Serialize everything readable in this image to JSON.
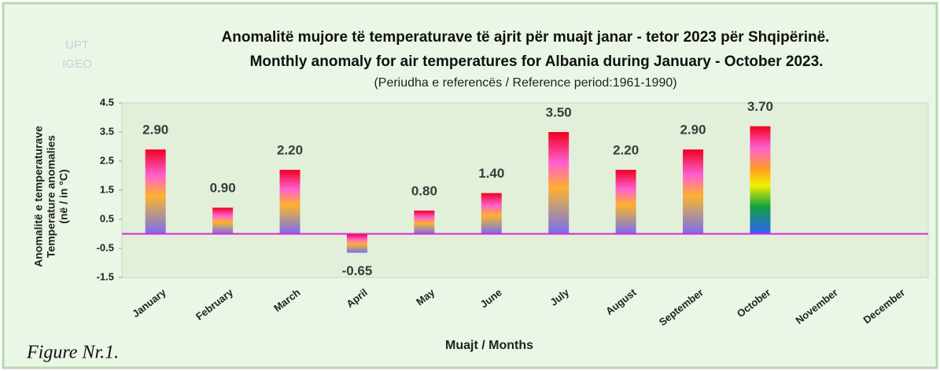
{
  "watermark": [
    "UPT",
    "IGEO"
  ],
  "figure_label": "Figure Nr.1.",
  "chart_data": {
    "type": "bar",
    "title": [
      "Anomalitë mujore të temperaturave të ajrit për muajt janar - tetor 2023 për Shqipërinë.",
      "Monthly anomaly for air temperatures for Albania during January - October 2023."
    ],
    "subtitle": "(Periudha e referencës / Reference period:1961-1990)",
    "ylabel": [
      "Anomalitë e temperaturave",
      "Temperature anomalies",
      "(në / in °C)"
    ],
    "xlabel": "Muajt / Months",
    "categories": [
      "January",
      "February",
      "March",
      "April",
      "May",
      "June",
      "July",
      "August",
      "September",
      "October",
      "November",
      "December"
    ],
    "values": [
      2.9,
      0.9,
      2.2,
      -0.65,
      0.8,
      1.4,
      3.5,
      2.2,
      2.9,
      3.7,
      null,
      null
    ],
    "value_labels": [
      "2.90",
      "0.90",
      "2.20",
      "-0.65",
      "0.80",
      "1.40",
      "3.50",
      "2.20",
      "2.90",
      "3.70",
      null,
      null
    ],
    "highlight": {
      "index": 9,
      "color": "#ff0000"
    },
    "ylim": [
      -1.5,
      4.5
    ],
    "yticks": [
      4.5,
      3.5,
      2.5,
      1.5,
      0.5,
      -0.5,
      -1.5
    ],
    "zero_line_color": "#e020e0"
  }
}
